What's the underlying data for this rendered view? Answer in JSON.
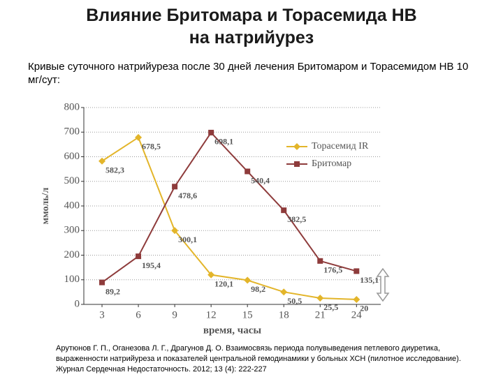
{
  "title": [
    "Влияние Бритомара и Торасемида НВ",
    "на натрийурез"
  ],
  "subtitle": "Кривые суточного натрийуреза после 30 дней лечения Бритомаром и Торасемидом НВ 10 мг/сут:",
  "reference": "Арутюнов Г. П., Оганезова Л. Г., Драгунов Д. О. Взаимосвязь периода полувыведения петлевого диуретика, выраженности натрийуреза и показателей центральной гемодинамики у больных ХСН (пилотное исследование). Журнал Сердечная Недостаточность. 2012; 13 (4): 222-227",
  "chart_data": {
    "type": "line",
    "x_label": "время, часы",
    "y_label": "ммоль/л",
    "x": [
      3,
      6,
      9,
      12,
      15,
      18,
      21,
      24
    ],
    "xlim": [
      1.5,
      26
    ],
    "xticks": [
      3,
      6,
      9,
      12,
      15,
      18,
      21,
      24
    ],
    "ylim": [
      0,
      800
    ],
    "yticks": [
      0,
      100,
      200,
      300,
      400,
      500,
      600,
      700,
      800
    ],
    "grid": true,
    "legend": "upper right",
    "series": [
      {
        "name": "Торасемид IR",
        "color": "#e3b52a",
        "marker": "diamond",
        "values": [
          582.3,
          678.5,
          300.1,
          120.1,
          98.2,
          50.5,
          25.5,
          20
        ],
        "value_labels": [
          "582,3",
          "678,5",
          "300,1",
          "120,1",
          "98,2",
          "50,5",
          "25,5",
          "20"
        ]
      },
      {
        "name": "Бритомар",
        "color": "#8e3b3b",
        "marker": "square",
        "values": [
          89.2,
          195.4,
          478.6,
          698.1,
          540.4,
          382.5,
          176.5,
          135.1
        ],
        "value_labels": [
          "89,2",
          "195,4",
          "478,6",
          "698,1",
          "540,4",
          "382,5",
          "176,5",
          "135,1"
        ]
      }
    ]
  }
}
